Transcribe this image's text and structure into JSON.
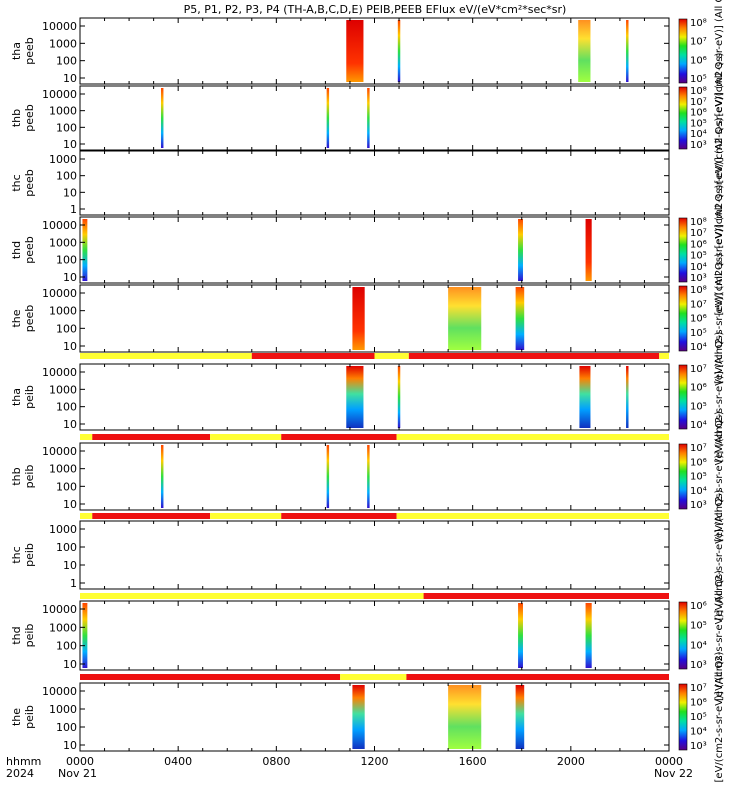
{
  "title": "P5, P1, P2, P3, P4 (TH-A,B,C,D,E) PEIB,PEEB EFlux eV/(eV*cm²*sec*sr)",
  "footer": {
    "hhmm": "hhmm",
    "year": "2024",
    "start_date": "Nov 21",
    "end_date": "Nov 22",
    "x_ticks": [
      "0000",
      "0400",
      "0800",
      "1200",
      "1600",
      "2000",
      "0000"
    ]
  },
  "colors": {
    "quality_red": "#ee1111",
    "quality_yellow": "#ffff33",
    "no_data": "#ffffff"
  },
  "chart_data": {
    "type": "heatmap",
    "x_unit": "hours since 2024-11-21 00:00 UT",
    "xlim": [
      0,
      24
    ],
    "y_scale": "log",
    "panels": [
      {
        "id": "tha_peeb",
        "ylabel_line1": "tha",
        "ylabel_line2": "peeb",
        "yticks": [
          "10000",
          "1000",
          "100",
          "10"
        ],
        "cb_ticks": [
          "10^8",
          "10^7",
          "10^6",
          "10^5"
        ],
        "cb_label": "[eV/(cm2-s-sr-eV)] (All Qs)",
        "bursts": [
          {
            "start": 10.85,
            "end": 11.55,
            "style": "hot"
          },
          {
            "start": 12.95,
            "end": 13.05,
            "style": "mid"
          },
          {
            "start": 20.3,
            "end": 20.8,
            "style": "wide"
          },
          {
            "start": 22.25,
            "end": 22.35,
            "style": "mid"
          }
        ]
      },
      {
        "id": "thb_peeb",
        "ylabel_line1": "thb",
        "ylabel_line2": "peeb",
        "yticks": [
          "10000",
          "1000",
          "100",
          "10"
        ],
        "cb_ticks": [
          "10^8",
          "10^7",
          "10^6",
          "10^5",
          "10^4",
          "10^3"
        ],
        "cb_label": "[eV/(cm2-s-sr-eV)] (All Qs)",
        "bursts": [
          {
            "start": 3.3,
            "end": 3.4,
            "style": "mid"
          },
          {
            "start": 10.05,
            "end": 10.15,
            "style": "mid"
          },
          {
            "start": 11.7,
            "end": 11.8,
            "style": "mid"
          }
        ]
      },
      {
        "id": "thc_peeb",
        "ylabel_line1": "thc",
        "ylabel_line2": "peeb",
        "yticks": [
          "1000",
          "100",
          "10",
          "1"
        ],
        "cb_ticks": [],
        "cb_label": "[eV/(cm2-s-sr-eV)] (All Qs)",
        "bursts": []
      },
      {
        "id": "thd_peeb",
        "ylabel_line1": "thd",
        "ylabel_line2": "peeb",
        "yticks": [
          "10000",
          "1000",
          "100",
          "10"
        ],
        "cb_ticks": [
          "10^8",
          "10^7",
          "10^6",
          "10^5",
          "10^4",
          "10^3"
        ],
        "cb_label": "[eV/(cm2-s-sr-eV)] (All Qs)",
        "bursts": [
          {
            "start": 0.1,
            "end": 0.3,
            "style": "mid"
          },
          {
            "start": 17.85,
            "end": 18.05,
            "style": "mid"
          },
          {
            "start": 20.6,
            "end": 20.85,
            "style": "hot"
          }
        ]
      },
      {
        "id": "the_peeb",
        "ylabel_line1": "the",
        "ylabel_line2": "peeb",
        "yticks": [
          "10000",
          "1000",
          "100",
          "10"
        ],
        "cb_ticks": [
          "10^8",
          "10^7",
          "10^6",
          "10^5",
          "10^4"
        ],
        "cb_label": "[eV/(cm2-s-sr-eV)] (All Qs)",
        "bursts": [
          {
            "start": 11.1,
            "end": 11.6,
            "style": "hot"
          },
          {
            "start": 15.0,
            "end": 16.35,
            "style": "wide"
          },
          {
            "start": 17.75,
            "end": 18.1,
            "style": "mid"
          }
        ]
      },
      {
        "id": "tha_peib",
        "ylabel_line1": "tha",
        "ylabel_line2": "peib",
        "yticks": [
          "10000",
          "1000",
          "100",
          "10"
        ],
        "cb_ticks": [
          "10^7",
          "10^6",
          "10^5",
          "10^4"
        ],
        "cb_label": "[eV/(cm2-s-sr-eV)] (All Qs)",
        "bursts": [
          {
            "start": 10.85,
            "end": 11.55,
            "style": "ion"
          },
          {
            "start": 12.95,
            "end": 13.05,
            "style": "mid"
          },
          {
            "start": 20.35,
            "end": 20.8,
            "style": "ion"
          },
          {
            "start": 22.25,
            "end": 22.35,
            "style": "ion"
          }
        ]
      },
      {
        "id": "thb_peib",
        "ylabel_line1": "thb",
        "ylabel_line2": "peib",
        "yticks": [
          "10000",
          "1000",
          "100",
          "10"
        ],
        "cb_ticks": [
          "10^7",
          "10^6",
          "10^5",
          "10^4",
          "10^3"
        ],
        "cb_label": "[eV/(cm2-s-sr-eV)] (All Qs)",
        "bursts": [
          {
            "start": 3.3,
            "end": 3.4,
            "style": "mid"
          },
          {
            "start": 10.05,
            "end": 10.15,
            "style": "mid"
          },
          {
            "start": 11.7,
            "end": 11.8,
            "style": "mid"
          }
        ]
      },
      {
        "id": "thc_peib",
        "ylabel_line1": "thc",
        "ylabel_line2": "peib",
        "yticks": [
          "1000",
          "100",
          "10",
          "1"
        ],
        "cb_ticks": [],
        "cb_label": "[eV/(cm2-s-sr-eV)] (All Qs)",
        "bursts": []
      },
      {
        "id": "thd_peib",
        "ylabel_line1": "thd",
        "ylabel_line2": "peib",
        "yticks": [
          "10000",
          "1000",
          "100",
          "10"
        ],
        "cb_ticks": [
          "10^6",
          "10^5",
          "10^4",
          "10^3"
        ],
        "cb_label": "[eV/(cm2-s-sr-eV)] (All Qs)",
        "bursts": [
          {
            "start": 0.1,
            "end": 0.3,
            "style": "mid"
          },
          {
            "start": 17.85,
            "end": 18.05,
            "style": "mid"
          },
          {
            "start": 20.6,
            "end": 20.85,
            "style": "mid"
          }
        ]
      },
      {
        "id": "the_peib",
        "ylabel_line1": "the",
        "ylabel_line2": "peib",
        "yticks": [
          "10000",
          "1000",
          "100",
          "10"
        ],
        "cb_ticks": [
          "10^7",
          "10^6",
          "10^5",
          "10^4",
          "10^3"
        ],
        "cb_label": "[eV/(cm2-s-sr-eV)] (All Qs)",
        "bursts": [
          {
            "start": 11.1,
            "end": 11.6,
            "style": "ion"
          },
          {
            "start": 15.0,
            "end": 16.35,
            "style": "wide"
          },
          {
            "start": 17.75,
            "end": 18.1,
            "style": "ion"
          }
        ]
      }
    ],
    "quality_bars": [
      {
        "segments": [
          [
            "yellow",
            0,
            7.0
          ],
          [
            "red",
            7.0,
            12.0
          ],
          [
            "yellow",
            12.0,
            13.4
          ],
          [
            "red",
            13.4,
            23.6
          ],
          [
            "yellow",
            23.6,
            24
          ]
        ]
      },
      {
        "segments": [
          [
            "yellow",
            0,
            0.5
          ],
          [
            "red",
            0.5,
            5.3
          ],
          [
            "yellow",
            5.3,
            8.2
          ],
          [
            "red",
            8.2,
            12.9
          ],
          [
            "yellow",
            12.9,
            24
          ]
        ]
      },
      {
        "segments": [
          [
            "yellow",
            0,
            0.5
          ],
          [
            "red",
            0.5,
            5.3
          ],
          [
            "yellow",
            5.3,
            8.2
          ],
          [
            "red",
            8.2,
            12.9
          ],
          [
            "yellow",
            12.9,
            24
          ]
        ]
      },
      {
        "segments": [
          [
            "yellow",
            0,
            14.0
          ],
          [
            "red",
            14.0,
            24
          ]
        ]
      },
      {
        "segments": [
          [
            "red",
            0,
            10.6
          ],
          [
            "yellow",
            10.6,
            13.3
          ],
          [
            "red",
            13.3,
            24
          ]
        ]
      }
    ]
  }
}
